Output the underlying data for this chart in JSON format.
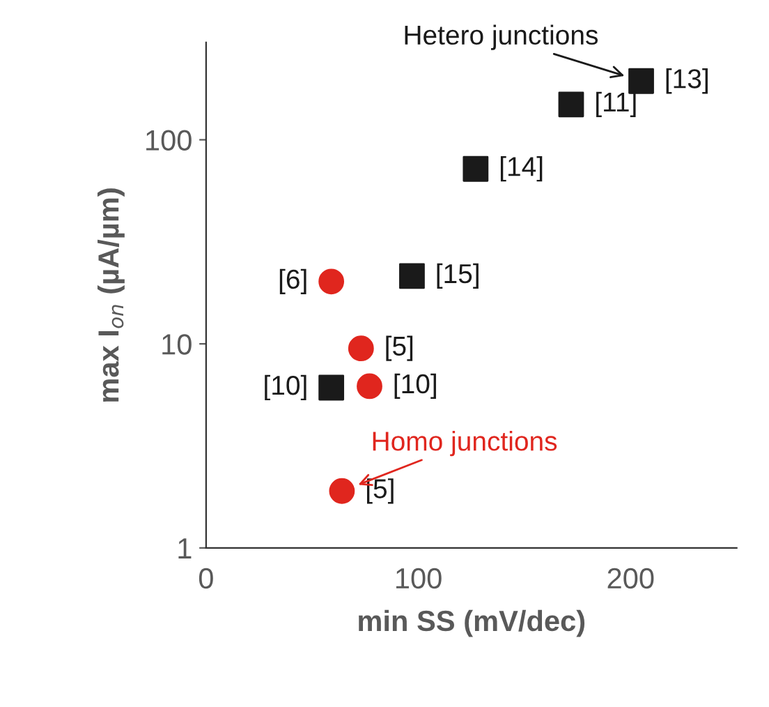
{
  "chart_data": {
    "type": "scatter",
    "xlabel": "min SS (mV/dec)",
    "ylabel": "max I$_{on}$ (µA/µm)",
    "xlim": [
      0,
      250
    ],
    "xticks": [
      0,
      100,
      200
    ],
    "ylim": [
      1,
      300
    ],
    "yticks": [
      1,
      10,
      100
    ],
    "log": "y",
    "grid": false,
    "legend": false,
    "series": [
      {
        "color": "#1a1a1a",
        "marker": "square",
        "x": [
          59,
          97,
          127,
          172,
          205
        ],
        "values": [
          6.1,
          21.5,
          72,
          149,
          194
        ]
      },
      {
        "color": "#e0261e",
        "marker": "circle",
        "x": [
          59,
          73,
          77,
          64
        ],
        "values": [
          20.2,
          9.5,
          6.2,
          1.9
        ]
      }
    ],
    "annotations": [
      {
        "text": "[13]",
        "x": 205,
        "y": 194
      },
      {
        "text": "Hetero junctions",
        "x": 205,
        "y": 194
      },
      {
        "text": "[11]",
        "x": 172,
        "y": 149
      },
      {
        "text": "[14]",
        "x": 127,
        "y": 72
      },
      {
        "text": "[15]",
        "x": 97,
        "y": 21.5
      },
      {
        "text": "[10]",
        "x": 59,
        "y": 6.1
      },
      {
        "text": "[6]",
        "x": 59,
        "y": 20.2
      },
      {
        "text": "[5]",
        "x": 73,
        "y": 9.5
      },
      {
        "text": "[10]",
        "x": 77,
        "y": 6.2
      },
      {
        "text": "[5]",
        "x": 64,
        "y": 1.9
      },
      {
        "text": "Homo junctions",
        "x": 64,
        "y": 1.9
      }
    ]
  }
}
